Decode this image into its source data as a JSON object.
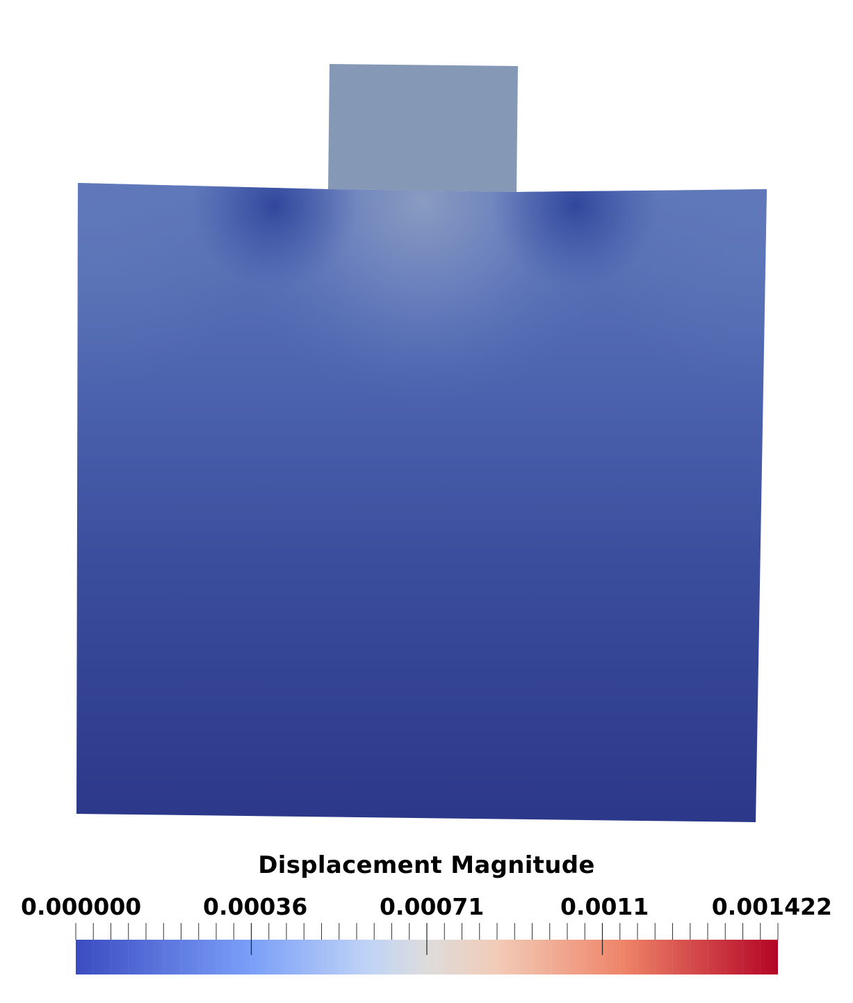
{
  "legend": {
    "title": "Displacement Magnitude",
    "tick_labels": [
      "0.000000",
      "0.00036",
      "0.00071",
      "0.0011",
      "0.001422"
    ]
  },
  "colormap": {
    "name": "cool-to-warm",
    "stops": [
      "#3b4cc0",
      "#7b9ff9",
      "#c0d4f5",
      "#dddcdc",
      "#f2cbb7",
      "#ee8468",
      "#b40426"
    ]
  },
  "field_colors": {
    "punch": "#8599b6",
    "slab_top_edge": "#5f78b8",
    "slab_corner_dark": "#3249a0",
    "slab_center_light": "#8097c4",
    "slab_bottom": "#2c3889"
  }
}
